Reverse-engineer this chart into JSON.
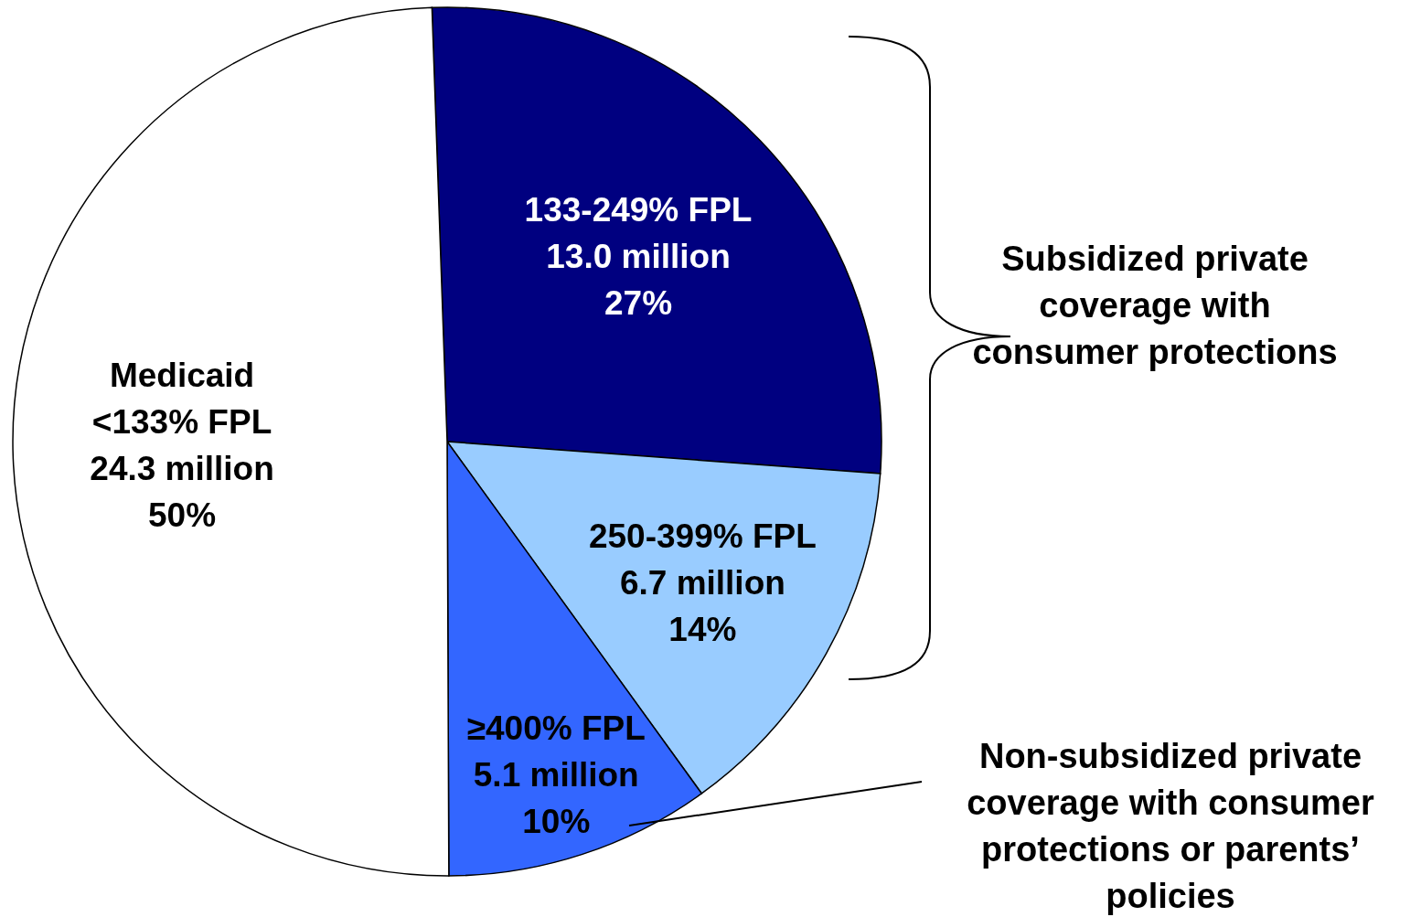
{
  "chart_data": {
    "type": "pie",
    "categories": [
      "133-249% FPL\n13.0 million",
      "250-399% FPL\n6.7 million",
      "≥400% FPL\n5.1 million",
      "Medicaid\n<133% FPL\n24.3 million"
    ],
    "values": [
      27,
      14,
      10,
      50
    ],
    "value_labels": [
      "27%",
      "14%",
      "10%",
      "50%"
    ],
    "colors": [
      "#000080",
      "#99ccff",
      "#3366ff",
      "#ffffff"
    ],
    "annotations": [
      "Subsidized private coverage with consumer protections",
      "Non-subsidized private coverage with consumer protections or parents’ policies"
    ]
  }
}
